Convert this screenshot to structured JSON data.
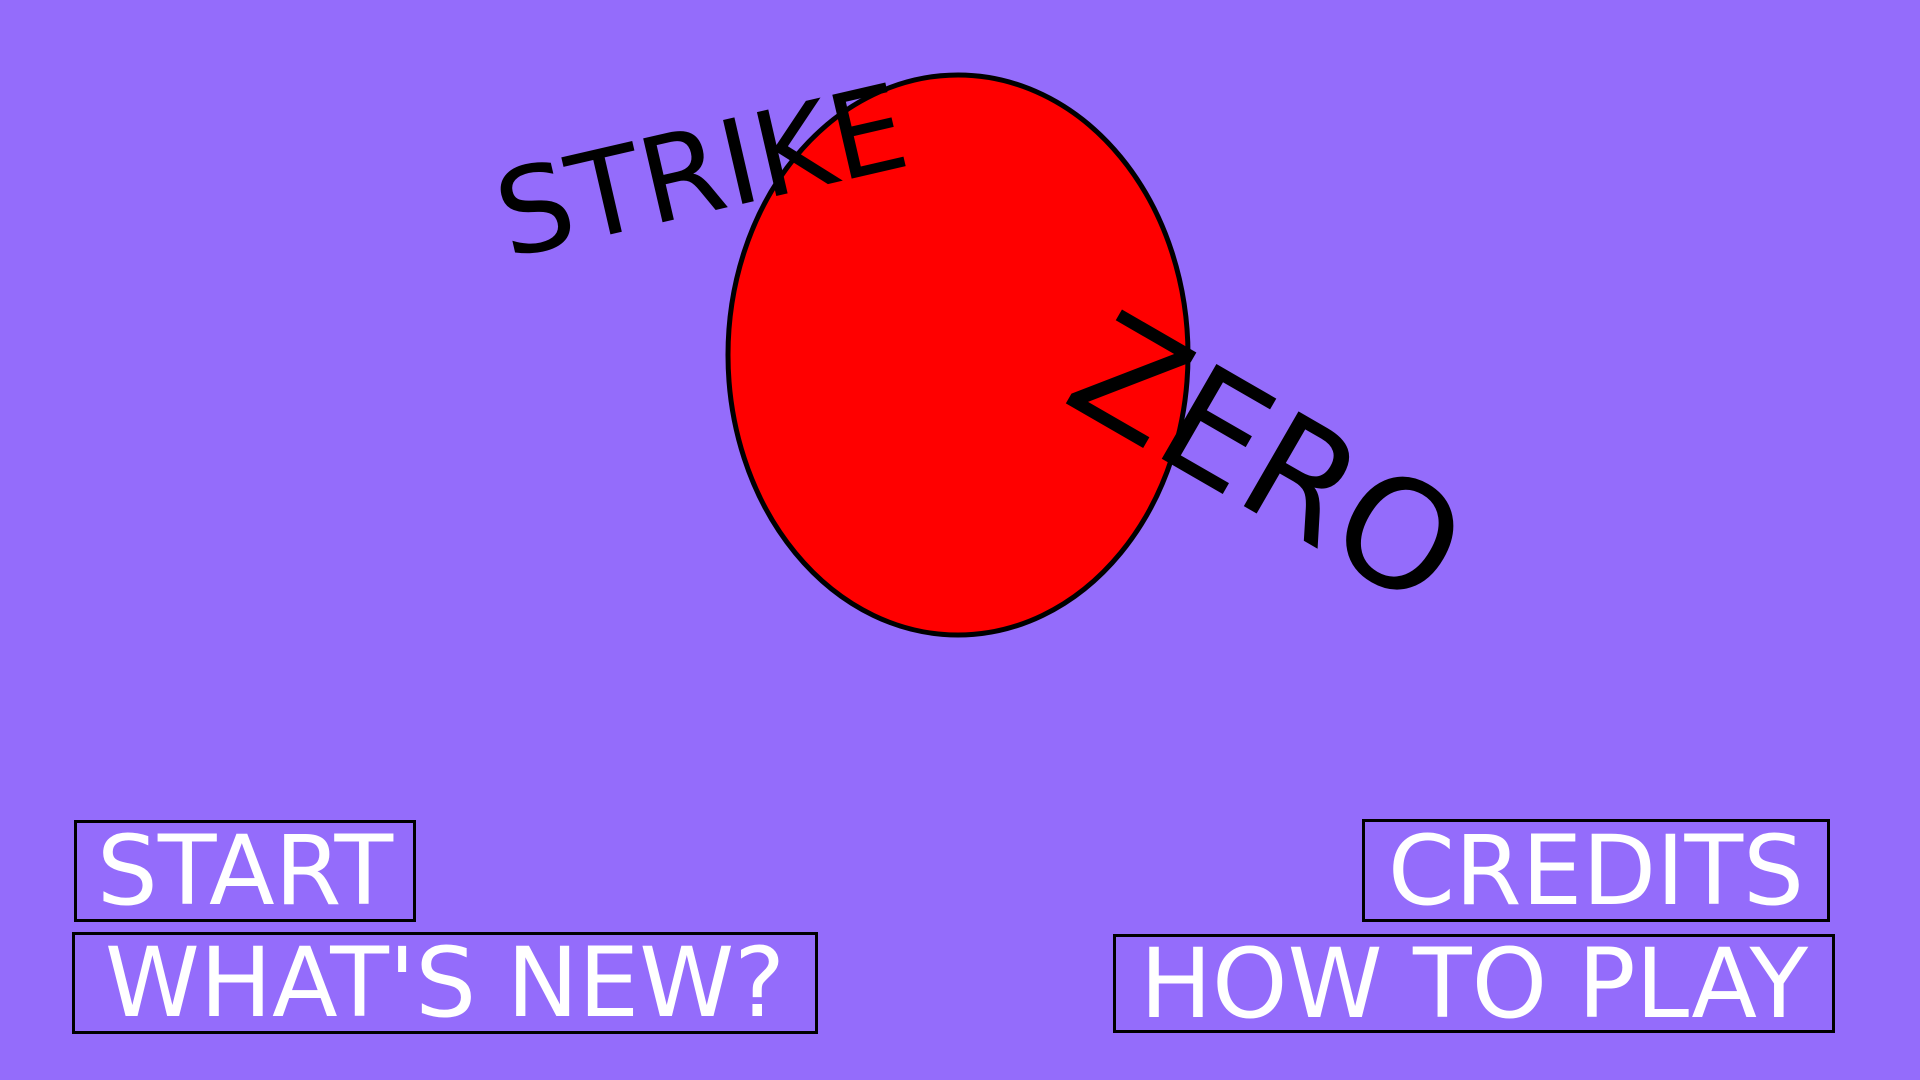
{
  "title": {
    "word1": "STRIKE",
    "word2": "ZERO"
  },
  "menu": {
    "start": "START",
    "whats_new": "WHAT'S NEW?",
    "credits": "CREDITS",
    "how_to_play": "HOW TO PLAY"
  },
  "colors": {
    "background": "#946cfb",
    "sun": "#ff0000",
    "outline": "#000000",
    "button_text": "#ffffff"
  }
}
